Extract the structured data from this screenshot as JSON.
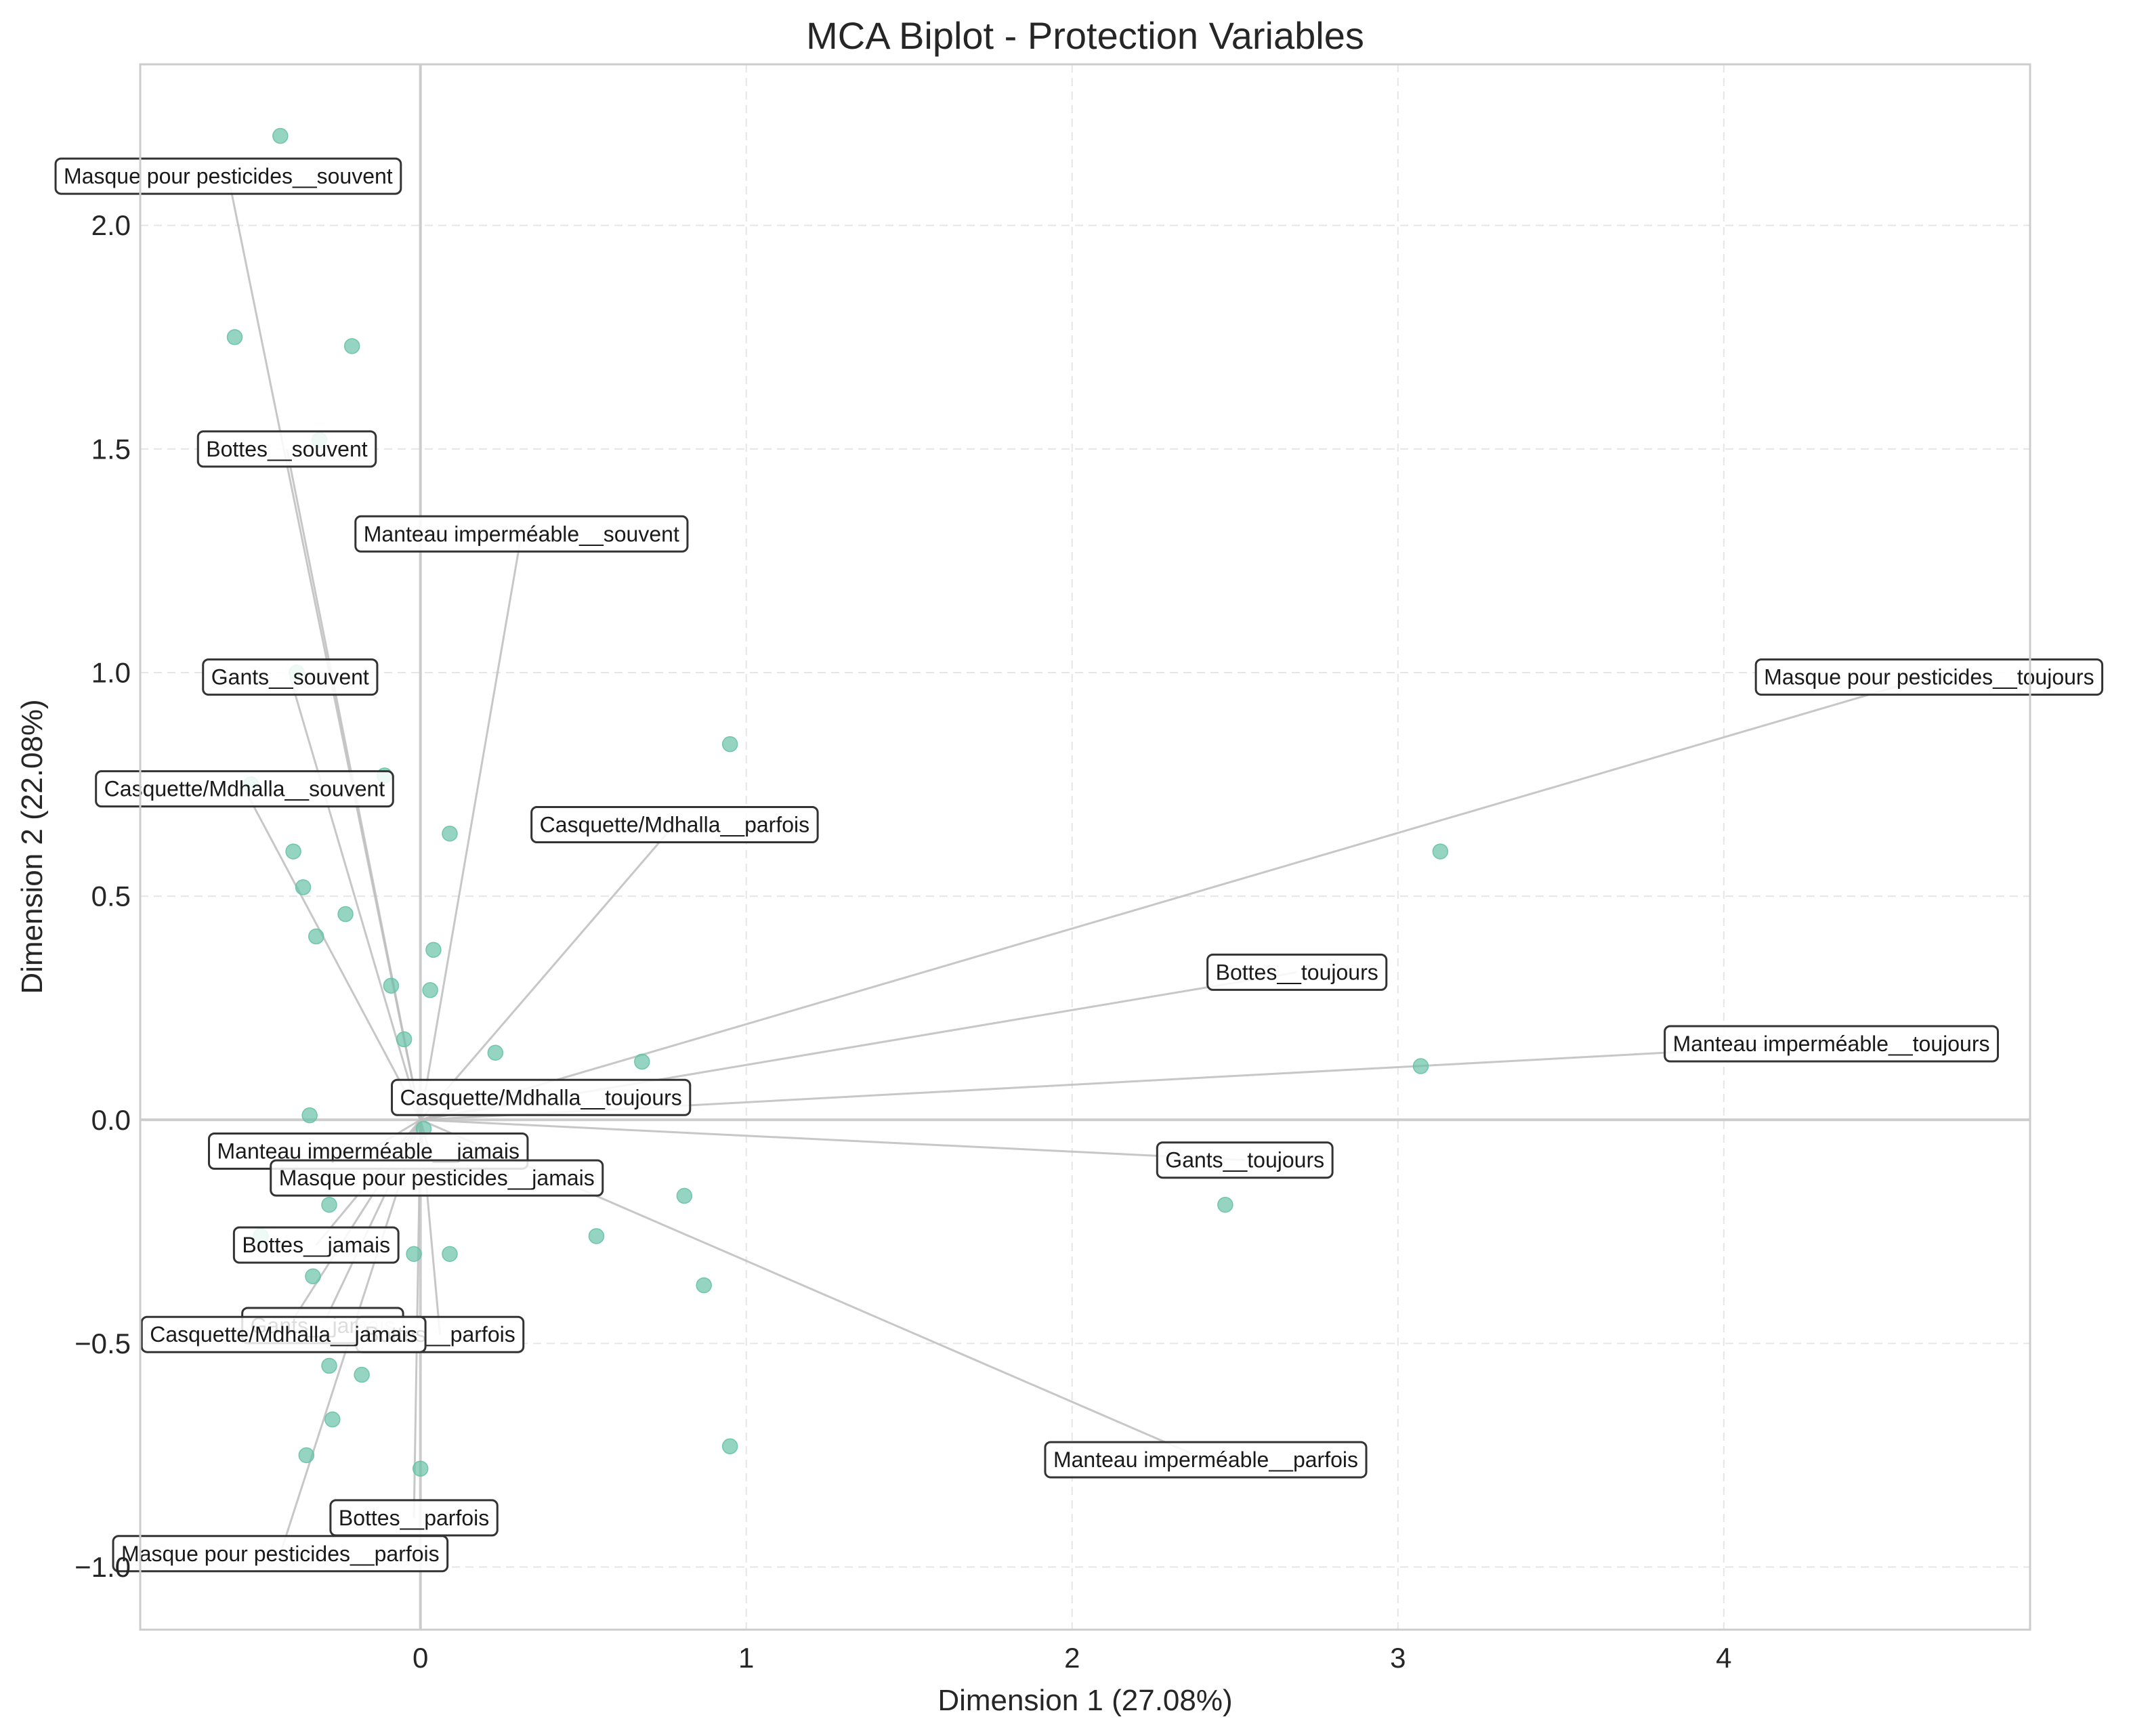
{
  "chart_data": {
    "type": "scatter",
    "title": "MCA Biplot - Protection Variables",
    "xlabel": "Dimension 1 (27.08%)",
    "ylabel": "Dimension 2 (22.08%)",
    "xlim": [
      -0.86,
      4.94
    ],
    "ylim": [
      -1.14,
      2.36
    ],
    "xticks": [
      0,
      1,
      2,
      3,
      4
    ],
    "yticks": [
      -1.0,
      -0.5,
      0.0,
      0.5,
      1.0,
      1.5,
      2.0
    ],
    "xtick_labels": [
      "0",
      "1",
      "2",
      "3",
      "4"
    ],
    "ytick_labels": [
      "−1.0",
      "−0.5",
      "0.0",
      "0.5",
      "1.0",
      "1.5",
      "2.0"
    ],
    "grid": true,
    "colors": {
      "points": "#66c2a5",
      "vectors": "#bdbdbd",
      "zero_lines": "#cccccc",
      "grid": "#e6e6e6"
    },
    "individuals": [
      {
        "x": -0.43,
        "y": 2.2
      },
      {
        "x": -0.57,
        "y": 1.75
      },
      {
        "x": -0.21,
        "y": 1.73
      },
      {
        "x": -0.31,
        "y": 1.52
      },
      {
        "x": -0.38,
        "y": 1.0
      },
      {
        "x": 0.95,
        "y": 0.84
      },
      {
        "x": -0.11,
        "y": 0.77
      },
      {
        "x": -0.52,
        "y": 0.75
      },
      {
        "x": 0.09,
        "y": 0.64
      },
      {
        "x": 3.13,
        "y": 0.6
      },
      {
        "x": -0.39,
        "y": 0.6
      },
      {
        "x": -0.36,
        "y": 0.52
      },
      {
        "x": -0.23,
        "y": 0.46
      },
      {
        "x": -0.32,
        "y": 0.41
      },
      {
        "x": 0.04,
        "y": 0.38
      },
      {
        "x": -0.09,
        "y": 0.3
      },
      {
        "x": 0.03,
        "y": 0.29
      },
      {
        "x": -0.05,
        "y": 0.18
      },
      {
        "x": 0.23,
        "y": 0.15
      },
      {
        "x": 0.68,
        "y": 0.13
      },
      {
        "x": 3.07,
        "y": 0.12
      },
      {
        "x": -0.34,
        "y": 0.01
      },
      {
        "x": 0.01,
        "y": -0.02
      },
      {
        "x": -0.28,
        "y": -0.19
      },
      {
        "x": 0.81,
        "y": -0.17
      },
      {
        "x": 2.47,
        "y": -0.19
      },
      {
        "x": -0.49,
        "y": -0.26
      },
      {
        "x": 0.54,
        "y": -0.26
      },
      {
        "x": 0.09,
        "y": -0.3
      },
      {
        "x": -0.02,
        "y": -0.3
      },
      {
        "x": -0.33,
        "y": -0.35
      },
      {
        "x": 0.87,
        "y": -0.37
      },
      {
        "x": -0.28,
        "y": -0.55
      },
      {
        "x": -0.18,
        "y": -0.57
      },
      {
        "x": -0.27,
        "y": -0.67
      },
      {
        "x": 0.95,
        "y": -0.73
      },
      {
        "x": -0.35,
        "y": -0.75
      },
      {
        "x": 0.0,
        "y": -0.78
      }
    ],
    "categories": [
      {
        "label": "Masque pour pesticides__souvent",
        "x": -0.59,
        "y": 2.11
      },
      {
        "label": "Bottes__souvent",
        "x": -0.41,
        "y": 1.5
      },
      {
        "label": "Manteau imperméable__souvent",
        "x": 0.31,
        "y": 1.31
      },
      {
        "label": "Gants__souvent",
        "x": -0.4,
        "y": 0.99
      },
      {
        "label": "Casquette/Mdhalla__souvent",
        "x": -0.54,
        "y": 0.74
      },
      {
        "label": "Casquette/Mdhalla__parfois",
        "x": 0.78,
        "y": 0.66
      },
      {
        "label": "Masque pour pesticides__toujours",
        "x": 4.63,
        "y": 0.99
      },
      {
        "label": "Bottes__toujours",
        "x": 2.69,
        "y": 0.33
      },
      {
        "label": "Manteau imperméable__toujours",
        "x": 4.33,
        "y": 0.17
      },
      {
        "label": "Casquette/Mdhalla__toujours",
        "x": 0.37,
        "y": 0.05
      },
      {
        "label": "Gants__toujours",
        "x": 2.53,
        "y": -0.09
      },
      {
        "label": "Manteau imperméable__jamais",
        "x": -0.16,
        "y": -0.07
      },
      {
        "label": "Masque pour pesticides__jamais",
        "x": 0.05,
        "y": -0.13
      },
      {
        "label": "Bottes__jamais",
        "x": -0.32,
        "y": -0.28
      },
      {
        "label": "Gants__jamais",
        "x": -0.3,
        "y": -0.46
      },
      {
        "label": "Bottes__parfois",
        "x": 0.06,
        "y": -0.48
      },
      {
        "label": "Casquette/Mdhalla__jamais",
        "x": -0.42,
        "y": -0.48
      },
      {
        "label": "Manteau imperméable__parfois",
        "x": 2.41,
        "y": -0.76
      },
      {
        "label": "Bottes__parfois",
        "x": -0.02,
        "y": -0.89
      },
      {
        "label": "Masque pour pesticides__parfois",
        "x": -0.43,
        "y": -0.97
      }
    ]
  }
}
